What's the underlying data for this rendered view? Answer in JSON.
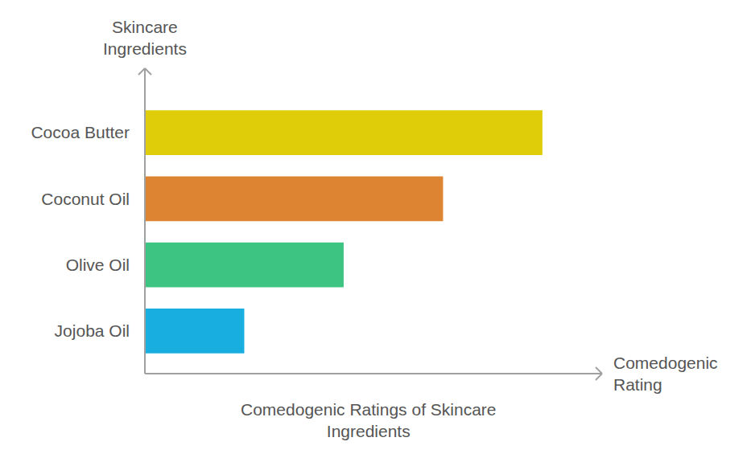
{
  "chart_data": {
    "type": "bar",
    "orientation": "horizontal",
    "title": "Comedogenic Ratings of Skincare Ingredients",
    "x_label": "Comedogenic Rating",
    "y_label": "Skincare Ingredients",
    "categories": [
      "Cocoa Butter",
      "Coconut Oil",
      "Olive Oil",
      "Jojoba Oil"
    ],
    "values": [
      4,
      3,
      2,
      1
    ],
    "colors": [
      "#e0cd0a",
      "#dd8433",
      "#3dc482",
      "#18aee0"
    ],
    "xlim": [
      0,
      4.6
    ],
    "tick_labels": "y",
    "grid": false
  }
}
